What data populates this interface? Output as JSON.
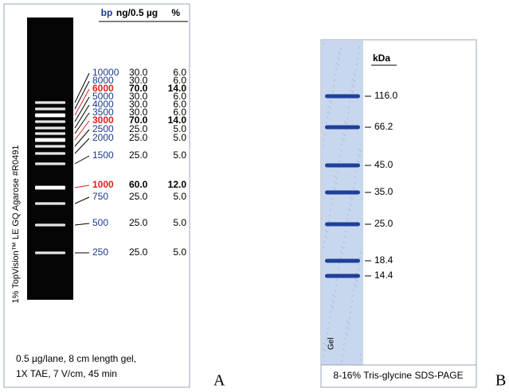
{
  "panel_a": {
    "headers": {
      "bp": "bp",
      "ng": "ng/0.5 µg",
      "pct": "%"
    },
    "rows": [
      {
        "bp": "10000",
        "ng": "30.0",
        "pct": "6.0",
        "highlight": false
      },
      {
        "bp": "8000",
        "ng": "30.0",
        "pct": "6.0",
        "highlight": false
      },
      {
        "bp": "6000",
        "ng": "70.0",
        "pct": "14.0",
        "highlight": true
      },
      {
        "bp": "5000",
        "ng": "30.0",
        "pct": "6.0",
        "highlight": false
      },
      {
        "bp": "4000",
        "ng": "30.0",
        "pct": "6.0",
        "highlight": false
      },
      {
        "bp": "3500",
        "ng": "30.0",
        "pct": "6.0",
        "highlight": false
      },
      {
        "bp": "3000",
        "ng": "70.0",
        "pct": "14.0",
        "highlight": true
      },
      {
        "bp": "2500",
        "ng": "25.0",
        "pct": "5.0",
        "highlight": false
      },
      {
        "bp": "2000",
        "ng": "25.0",
        "pct": "5.0",
        "highlight": false
      },
      {
        "bp": "1500",
        "ng": "25.0",
        "pct": "5.0",
        "highlight": false
      },
      {
        "bp": "1000",
        "ng": "60.0",
        "pct": "12.0",
        "highlight": true
      },
      {
        "bp": "750",
        "ng": "25.0",
        "pct": "5.0",
        "highlight": false
      },
      {
        "bp": "500",
        "ng": "25.0",
        "pct": "5.0",
        "highlight": false
      },
      {
        "bp": "250",
        "ng": "25.0",
        "pct": "5.0",
        "highlight": false
      }
    ],
    "side_label": "1% TopVision™ LE GQ Agarose #R0491",
    "caption_line1": "0.5 µg/lane, 8 cm length gel,",
    "caption_line2": "1X TAE, 7 V/cm, 45 min",
    "letter": "A"
  },
  "panel_b": {
    "unit": "kDa",
    "markers": [
      "116.0",
      "66.2",
      "45.0",
      "35.0",
      "25.0",
      "18.4",
      "14.4"
    ],
    "gel_label": "Gel",
    "caption": "8-16% Tris-glycine SDS-PAGE",
    "letter": "B"
  }
}
